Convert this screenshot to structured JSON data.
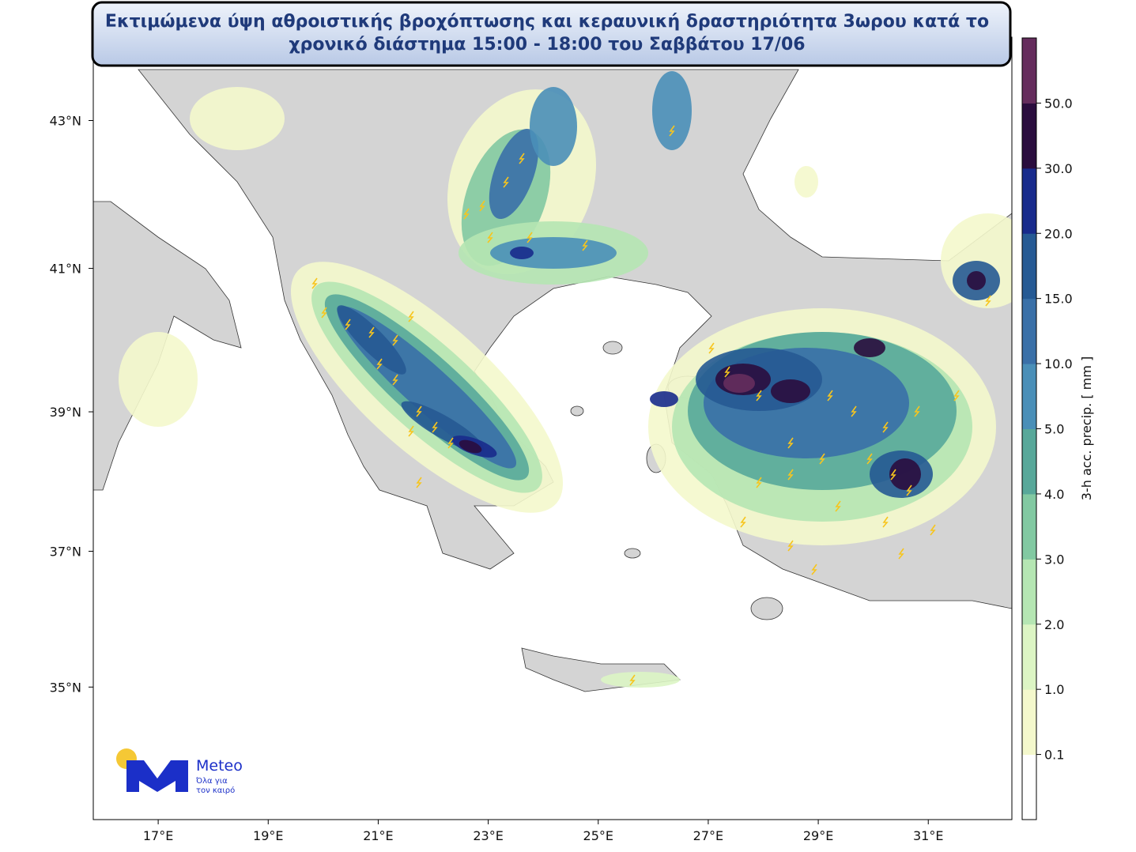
{
  "header": {
    "title_lines": [
      "Εκτιμώμενα ύψη αθροιστικής βροχόπτωσης και κεραυνική δραστηριότητα 3ωρου κατά το",
      "χρονικό διάστημα 15:00 - 18:00 του Σαββάτου 17/06"
    ]
  },
  "map": {
    "lon_range": [
      15.82,
      32.52
    ],
    "lat_range": [
      33.0,
      44.1
    ],
    "lon_ticks": [
      {
        "value": 17,
        "label": "17°E"
      },
      {
        "value": 19,
        "label": "19°E"
      },
      {
        "value": 21,
        "label": "21°E"
      },
      {
        "value": 23,
        "label": "23°E"
      },
      {
        "value": 25,
        "label": "25°E"
      },
      {
        "value": 27,
        "label": "27°E"
      },
      {
        "value": 29,
        "label": "29°E"
      },
      {
        "value": 31,
        "label": "31°E"
      }
    ],
    "lat_ticks": [
      {
        "value": 35,
        "label": "35°N"
      },
      {
        "value": 37,
        "label": "37°N"
      },
      {
        "value": 39,
        "label": "39°N"
      },
      {
        "value": 41,
        "label": "41°N"
      },
      {
        "value": 43,
        "label": "43°N"
      }
    ]
  },
  "colorbar": {
    "label": "3-h acc. precip. [ mm ]",
    "levels": [
      0.1,
      {
        "value": 1,
        "label": "1.0"
      },
      {
        "value": 2,
        "label": "2.0"
      },
      {
        "value": 3,
        "label": "3.0"
      },
      {
        "value": 4,
        "label": "4.0"
      },
      {
        "value": 5,
        "label": "5.0"
      },
      {
        "value": 10,
        "label": "10.0"
      },
      {
        "value": 15,
        "label": "15.0"
      },
      {
        "value": 20,
        "label": "20.0"
      },
      {
        "value": 30,
        "label": "30.0"
      },
      {
        "value": 50,
        "label": "50.0"
      }
    ],
    "colors": [
      "#ffffff",
      "#f4f8cc",
      "#dcf5c4",
      "#b5e6b3",
      "#82c9a2",
      "#58a89a",
      "#4a8fb8",
      "#3a70a8",
      "#265a94",
      "#182b8c",
      "#2a0d3e",
      "#652d5d"
    ]
  },
  "logo": {
    "name": "Meteo",
    "tagline": [
      "Όλα για",
      "τον καιρό"
    ]
  }
}
